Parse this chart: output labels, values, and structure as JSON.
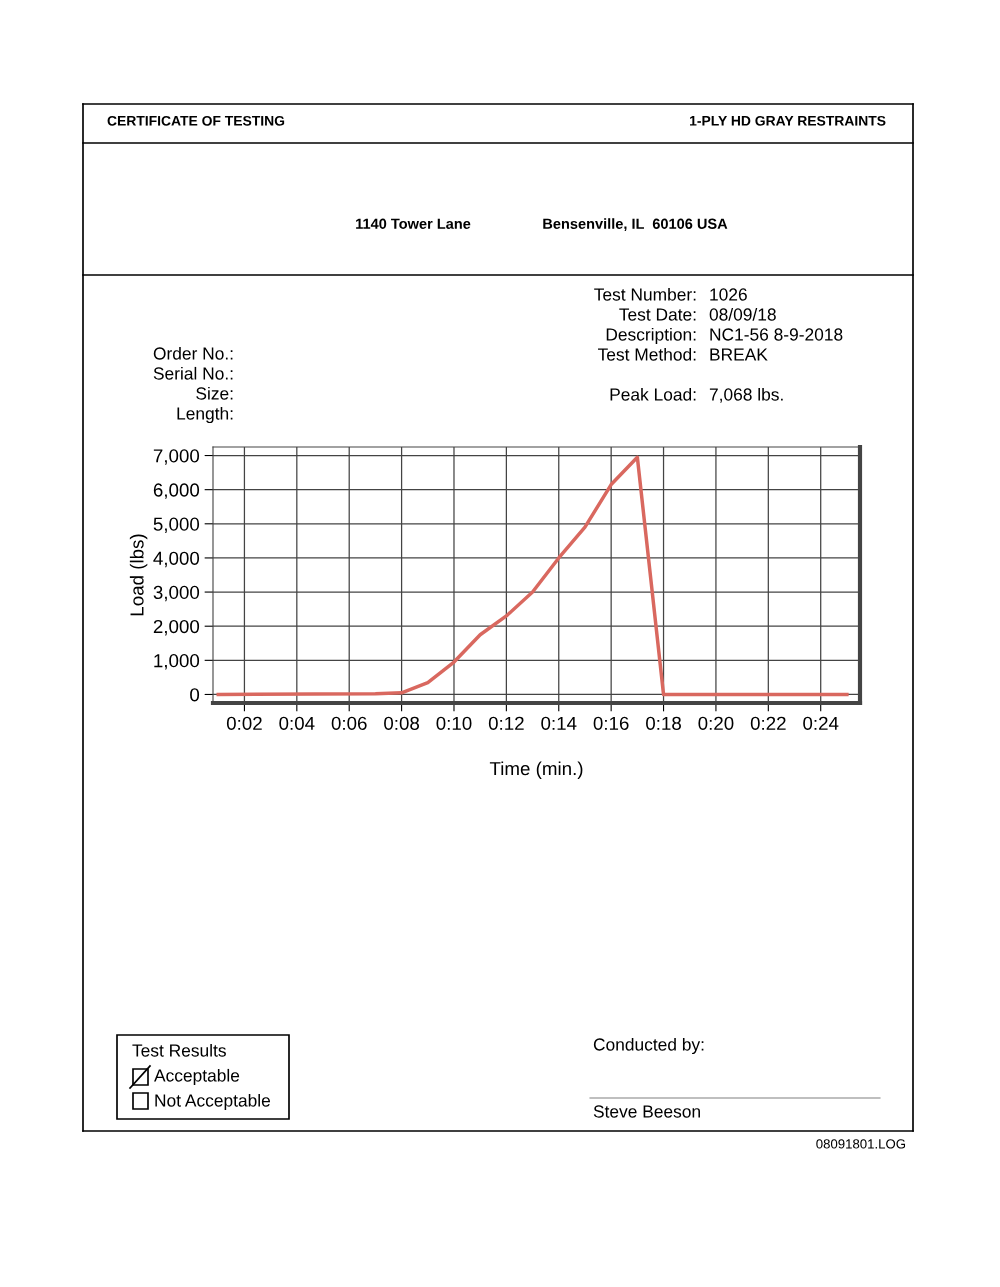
{
  "chart_data": {
    "type": "line",
    "title": "CERTIFICATE OF TESTING",
    "subtitle": "1-PLY HD GRAY RESTRAINTS",
    "xlabel": "Time (min.)",
    "ylabel": "Load (lbs)",
    "x": [
      1,
      7,
      8,
      9,
      10,
      11,
      12,
      13,
      14,
      15,
      16,
      17,
      18,
      25
    ],
    "series": [
      {
        "color": "#d9685f",
        "values": [
          0,
          20,
          50,
          350,
          950,
          1750,
          2300,
          3000,
          4000,
          4900,
          6150,
          6950,
          0,
          0
        ]
      }
    ],
    "xlim": [
      0.8,
      25.5
    ],
    "ylim": [
      -250,
      7250
    ],
    "xticks": [
      {
        "value": 2,
        "label": "0:02"
      },
      {
        "value": 4,
        "label": "0:04"
      },
      {
        "value": 6,
        "label": "0:06"
      },
      {
        "value": 8,
        "label": "0:08"
      },
      {
        "value": 10,
        "label": "0:10"
      },
      {
        "value": 12,
        "label": "0:12"
      },
      {
        "value": 14,
        "label": "0:14"
      },
      {
        "value": 16,
        "label": "0:16"
      },
      {
        "value": 18,
        "label": "0:18"
      },
      {
        "value": 20,
        "label": "0:20"
      },
      {
        "value": 22,
        "label": "0:22"
      },
      {
        "value": 24,
        "label": "0:24"
      }
    ],
    "yticks": [
      0,
      {
        "value": 1000,
        "label": "1,000"
      },
      {
        "value": 2000,
        "label": "2,000"
      },
      {
        "value": 3000,
        "label": "3,000"
      },
      {
        "value": 4000,
        "label": "4,000"
      },
      {
        "value": 5000,
        "label": "5,000"
      },
      {
        "value": 6000,
        "label": "6,000"
      },
      {
        "value": 7000,
        "label": "7,000"
      }
    ],
    "grid": true,
    "line_style": "solid",
    "marker": "none",
    "annotations": [
      "1140 Tower Lane",
      "Bensenville, IL  60106 USA",
      "Test Number:",
      "1026",
      "Test Date:",
      "08/09/18",
      "Description:",
      "NC1-56 8-9-2018",
      "Test Method:",
      "BREAK",
      "Peak Load:",
      "7,068 lbs.",
      "Order No.:",
      "Serial No.:",
      "Size:",
      "Length:",
      "Test Results",
      "Acceptable",
      "Not Acceptable",
      "Conducted by:",
      "Steve Beeson",
      "08091801.LOG"
    ]
  }
}
